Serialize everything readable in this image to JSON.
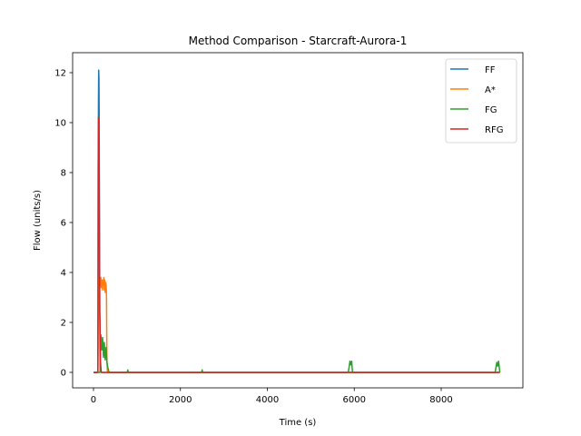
{
  "chart_data": {
    "type": "line",
    "title": "Method Comparison - Starcraft-Aurora-1",
    "xlabel": "Time (s)",
    "ylabel": "Flow (units/s)",
    "xlim": [
      -480,
      9880
    ],
    "ylim": [
      -0.62,
      12.8
    ],
    "xticks": [
      0,
      2000,
      4000,
      6000,
      8000
    ],
    "yticks": [
      0,
      2,
      4,
      6,
      8,
      10,
      12
    ],
    "grid": false,
    "legend_position": "upper right",
    "series": [
      {
        "name": "FF",
        "color": "#1f77b4",
        "x": [
          0,
          100,
          105,
          110,
          115,
          120,
          125,
          130,
          135,
          140,
          145,
          150,
          160,
          180,
          200,
          9350
        ],
        "y": [
          0,
          0,
          3.0,
          8.5,
          11.0,
          12.1,
          11.8,
          10.5,
          8.0,
          5.0,
          2.5,
          0.8,
          0.1,
          0,
          0,
          0
        ]
      },
      {
        "name": "A*",
        "color": "#ff7f0e",
        "x": [
          0,
          100,
          110,
          120,
          130,
          140,
          150,
          160,
          170,
          180,
          190,
          200,
          210,
          220,
          230,
          240,
          250,
          260,
          270,
          280,
          290,
          300,
          310,
          320,
          9350
        ],
        "y": [
          0,
          0,
          2.5,
          3.5,
          3.8,
          3.2,
          3.7,
          3.5,
          3.8,
          3.4,
          3.7,
          3.6,
          3.3,
          3.7,
          3.5,
          3.8,
          3.3,
          3.7,
          3.2,
          3.6,
          3.5,
          3.1,
          0.5,
          0,
          0
        ]
      },
      {
        "name": "FG",
        "color": "#2ca02c",
        "x": [
          0,
          150,
          170,
          190,
          210,
          230,
          250,
          270,
          290,
          310,
          330,
          360,
          780,
          790,
          800,
          2490,
          2500,
          2510,
          5860,
          5880,
          5900,
          5920,
          5940,
          5960,
          9240,
          9260,
          9280,
          9300,
          9320,
          9350
        ],
        "y": [
          0,
          0,
          1.5,
          0.9,
          1.4,
          0.6,
          1.2,
          0.5,
          1.0,
          0.4,
          0.2,
          0,
          0,
          0.1,
          0,
          0,
          0.1,
          0,
          0,
          0.2,
          0.45,
          0.3,
          0.45,
          0,
          0,
          0.2,
          0.4,
          0.25,
          0.45,
          0
        ]
      },
      {
        "name": "RFG",
        "color": "#d62728",
        "x": [
          0,
          100,
          105,
          110,
          115,
          120,
          125,
          130,
          135,
          140,
          145,
          150,
          155,
          160,
          170,
          180,
          200,
          9350
        ],
        "y": [
          0,
          0,
          3.0,
          8.2,
          10.2,
          9.8,
          8.0,
          9.3,
          6.5,
          4.0,
          2.4,
          2.0,
          1.2,
          0.5,
          0.2,
          0,
          0,
          0
        ]
      }
    ]
  }
}
